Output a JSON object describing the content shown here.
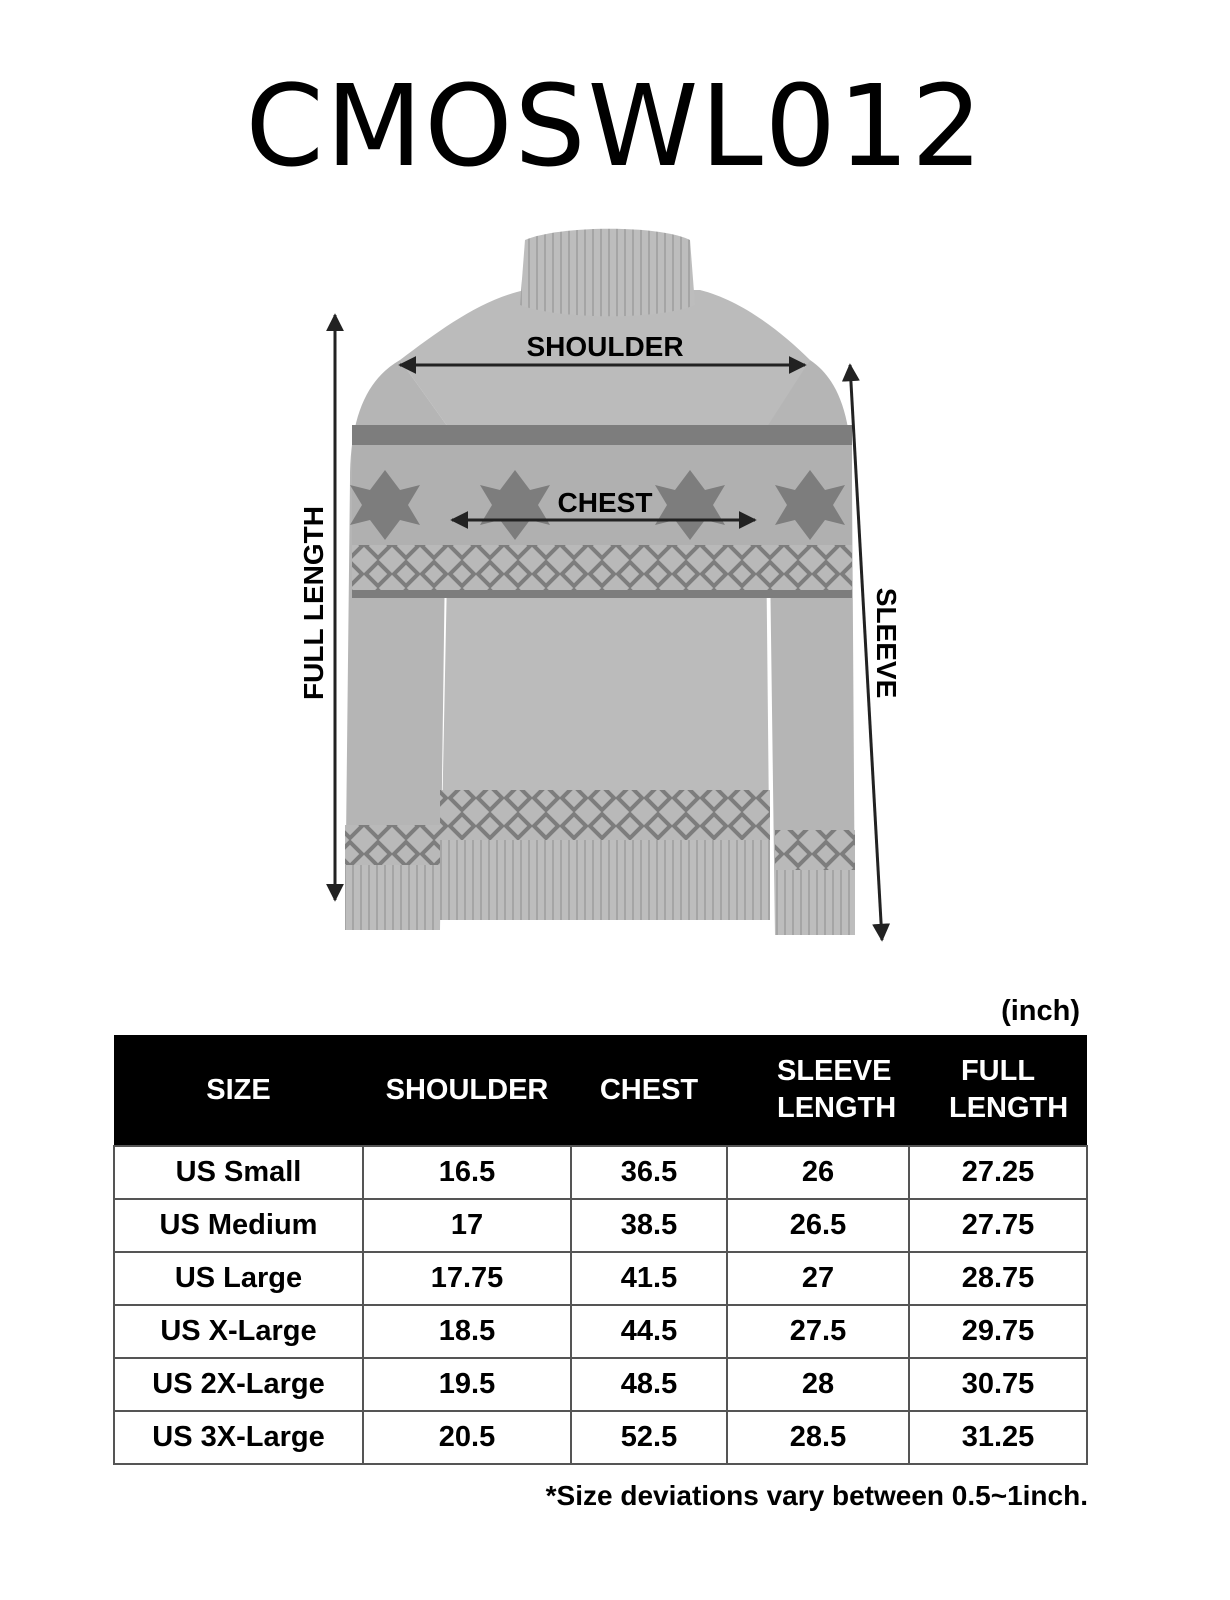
{
  "title": "CMOSWL012",
  "figure": {
    "labels": {
      "shoulder": "SHOULDER",
      "chest": "CHEST",
      "full_length": "FULL LENGTH",
      "sleeve": "SLEEVE"
    },
    "garment_color": "#b9b9b9",
    "pattern_color": "#7d7d7d"
  },
  "unit": "(inch)",
  "table": {
    "headers": [
      "SIZE",
      "SHOULDER",
      "CHEST",
      "SLEEVE LENGTH",
      "FULL LENGTH"
    ],
    "rows": [
      [
        "US Small",
        "16.5",
        "36.5",
        "26",
        "27.25"
      ],
      [
        "US Medium",
        "17",
        "38.5",
        "26.5",
        "27.75"
      ],
      [
        "US Large",
        "17.75",
        "41.5",
        "27",
        "28.75"
      ],
      [
        "US X-Large",
        "18.5",
        "44.5",
        "27.5",
        "29.75"
      ],
      [
        "US 2X-Large",
        "19.5",
        "48.5",
        "28",
        "30.75"
      ],
      [
        "US 3X-Large",
        "20.5",
        "52.5",
        "28.5",
        "31.25"
      ]
    ]
  },
  "note": "*Size deviations vary between 0.5~1inch."
}
